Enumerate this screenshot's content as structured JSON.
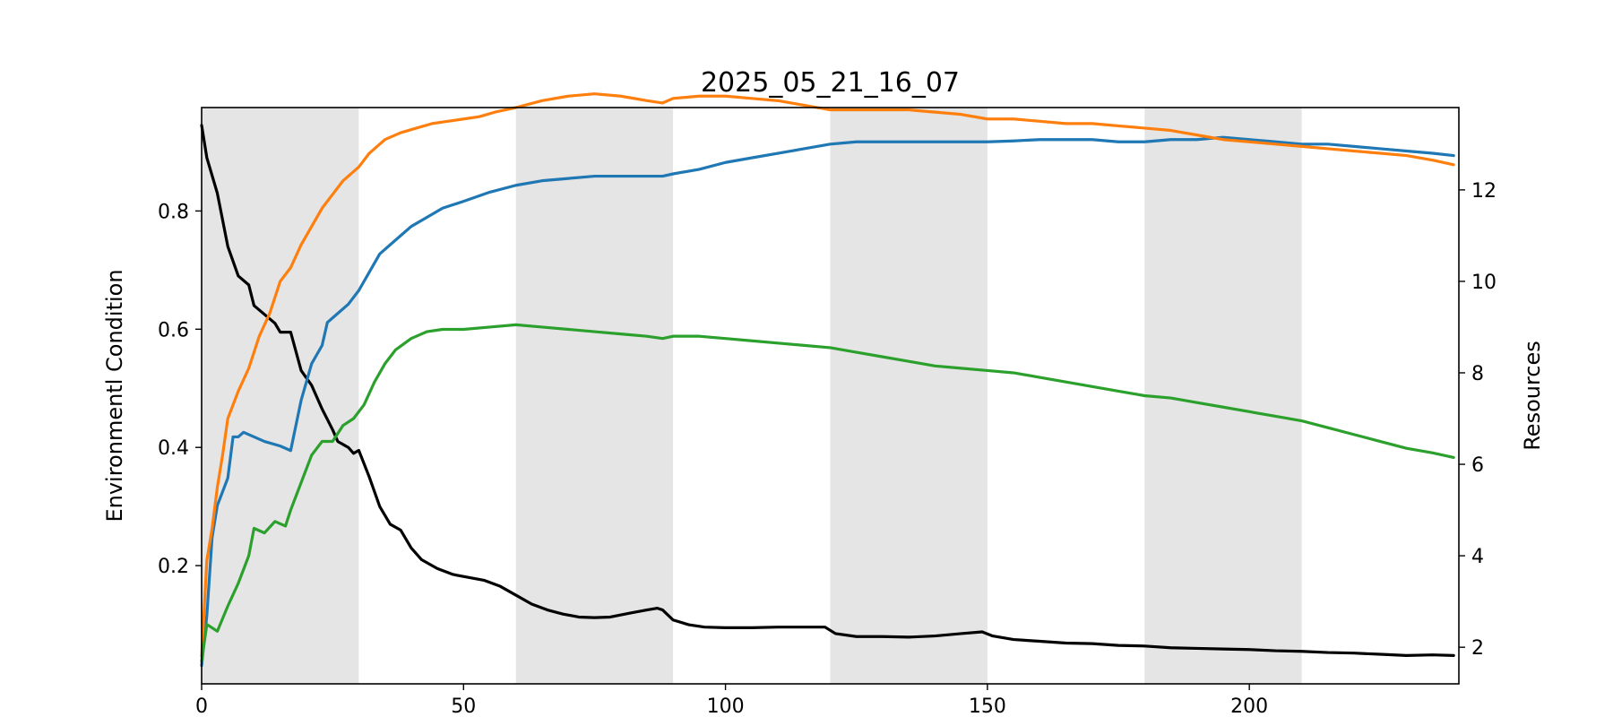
{
  "chart_data": {
    "type": "line",
    "title": "2025_05_21_16_07",
    "xlabel": "",
    "ylabel": "Environmentl Condition",
    "ylabel_right": "Resources",
    "xlim": [
      0,
      240
    ],
    "ylim": [
      0.0,
      0.975
    ],
    "ylim_right": [
      1.2,
      13.8
    ],
    "x_ticks": [
      0,
      50,
      100,
      150,
      200
    ],
    "y_ticks": [
      0.2,
      0.4,
      0.6,
      0.8
    ],
    "y_ticks_right": [
      2,
      4,
      6,
      8,
      10,
      12
    ],
    "grid": false,
    "legend": "none",
    "shaded_x_ranges": [
      [
        0,
        30
      ],
      [
        60,
        90
      ],
      [
        120,
        150
      ],
      [
        180,
        210
      ]
    ],
    "shade_color": "#e5e5e5",
    "series": [
      {
        "axis": "left",
        "color": "#000000",
        "points": [
          [
            0,
            0.945
          ],
          [
            1,
            0.89
          ],
          [
            3,
            0.83
          ],
          [
            5,
            0.74
          ],
          [
            7,
            0.69
          ],
          [
            9,
            0.675
          ],
          [
            10,
            0.64
          ],
          [
            12,
            0.625
          ],
          [
            14,
            0.61
          ],
          [
            15,
            0.595
          ],
          [
            17,
            0.595
          ],
          [
            19,
            0.53
          ],
          [
            21,
            0.505
          ],
          [
            23,
            0.465
          ],
          [
            25,
            0.43
          ],
          [
            26,
            0.41
          ],
          [
            28,
            0.4
          ],
          [
            29,
            0.39
          ],
          [
            30,
            0.395
          ],
          [
            32,
            0.35
          ],
          [
            34,
            0.3
          ],
          [
            36,
            0.27
          ],
          [
            38,
            0.26
          ],
          [
            40,
            0.23
          ],
          [
            42,
            0.21
          ],
          [
            45,
            0.195
          ],
          [
            48,
            0.185
          ],
          [
            51,
            0.18
          ],
          [
            54,
            0.175
          ],
          [
            57,
            0.165
          ],
          [
            60,
            0.15
          ],
          [
            63,
            0.135
          ],
          [
            66,
            0.125
          ],
          [
            69,
            0.118
          ],
          [
            72,
            0.113
          ],
          [
            75,
            0.112
          ],
          [
            78,
            0.113
          ],
          [
            82,
            0.12
          ],
          [
            85,
            0.125
          ],
          [
            87,
            0.128
          ],
          [
            88,
            0.125
          ],
          [
            90,
            0.108
          ],
          [
            93,
            0.1
          ],
          [
            96,
            0.096
          ],
          [
            100,
            0.095
          ],
          [
            105,
            0.095
          ],
          [
            110,
            0.096
          ],
          [
            115,
            0.096
          ],
          [
            119,
            0.096
          ],
          [
            121,
            0.085
          ],
          [
            125,
            0.08
          ],
          [
            130,
            0.08
          ],
          [
            135,
            0.079
          ],
          [
            140,
            0.081
          ],
          [
            145,
            0.085
          ],
          [
            149,
            0.088
          ],
          [
            151,
            0.081
          ],
          [
            155,
            0.075
          ],
          [
            160,
            0.072
          ],
          [
            165,
            0.069
          ],
          [
            170,
            0.068
          ],
          [
            175,
            0.065
          ],
          [
            180,
            0.064
          ],
          [
            185,
            0.061
          ],
          [
            190,
            0.06
          ],
          [
            195,
            0.059
          ],
          [
            200,
            0.058
          ],
          [
            205,
            0.056
          ],
          [
            210,
            0.055
          ],
          [
            215,
            0.053
          ],
          [
            220,
            0.052
          ],
          [
            225,
            0.05
          ],
          [
            230,
            0.048
          ],
          [
            235,
            0.049
          ],
          [
            239,
            0.048
          ]
        ]
      },
      {
        "axis": "right",
        "color": "#1f77b4",
        "points": [
          [
            0,
            1.6
          ],
          [
            1,
            2.7
          ],
          [
            2,
            4.4
          ],
          [
            3,
            5.1
          ],
          [
            4,
            5.4
          ],
          [
            5,
            5.7
          ],
          [
            6,
            6.6
          ],
          [
            7,
            6.6
          ],
          [
            8,
            6.7
          ],
          [
            10,
            6.6
          ],
          [
            12,
            6.5
          ],
          [
            15,
            6.4
          ],
          [
            17,
            6.3
          ],
          [
            19,
            7.4
          ],
          [
            21,
            8.2
          ],
          [
            23,
            8.6
          ],
          [
            24,
            9.1
          ],
          [
            26,
            9.3
          ],
          [
            28,
            9.5
          ],
          [
            30,
            9.8
          ],
          [
            32,
            10.2
          ],
          [
            34,
            10.6
          ],
          [
            36,
            10.8
          ],
          [
            38,
            11.0
          ],
          [
            40,
            11.2
          ],
          [
            43,
            11.4
          ],
          [
            46,
            11.6
          ],
          [
            50,
            11.75
          ],
          [
            55,
            11.95
          ],
          [
            60,
            12.1
          ],
          [
            65,
            12.2
          ],
          [
            70,
            12.25
          ],
          [
            75,
            12.3
          ],
          [
            80,
            12.3
          ],
          [
            85,
            12.3
          ],
          [
            88,
            12.3
          ],
          [
            90,
            12.35
          ],
          [
            95,
            12.45
          ],
          [
            100,
            12.6
          ],
          [
            105,
            12.7
          ],
          [
            110,
            12.8
          ],
          [
            115,
            12.9
          ],
          [
            120,
            13.0
          ],
          [
            125,
            13.05
          ],
          [
            130,
            13.05
          ],
          [
            135,
            13.05
          ],
          [
            140,
            13.05
          ],
          [
            145,
            13.05
          ],
          [
            150,
            13.05
          ],
          [
            155,
            13.07
          ],
          [
            160,
            13.1
          ],
          [
            165,
            13.1
          ],
          [
            170,
            13.1
          ],
          [
            175,
            13.05
          ],
          [
            180,
            13.05
          ],
          [
            185,
            13.1
          ],
          [
            190,
            13.1
          ],
          [
            195,
            13.15
          ],
          [
            200,
            13.1
          ],
          [
            205,
            13.05
          ],
          [
            210,
            13.0
          ],
          [
            215,
            13.0
          ],
          [
            220,
            12.95
          ],
          [
            225,
            12.9
          ],
          [
            230,
            12.85
          ],
          [
            235,
            12.8
          ],
          [
            239,
            12.75
          ]
        ]
      },
      {
        "axis": "right",
        "color": "#ff7f0e",
        "points": [
          [
            0,
            1.8
          ],
          [
            1,
            3.9
          ],
          [
            2,
            4.6
          ],
          [
            3,
            5.5
          ],
          [
            4,
            6.2
          ],
          [
            5,
            7.0
          ],
          [
            7,
            7.6
          ],
          [
            9,
            8.1
          ],
          [
            11,
            8.8
          ],
          [
            13,
            9.3
          ],
          [
            15,
            10.0
          ],
          [
            17,
            10.3
          ],
          [
            19,
            10.8
          ],
          [
            21,
            11.2
          ],
          [
            23,
            11.6
          ],
          [
            25,
            11.9
          ],
          [
            27,
            12.2
          ],
          [
            30,
            12.5
          ],
          [
            32,
            12.8
          ],
          [
            35,
            13.1
          ],
          [
            38,
            13.25
          ],
          [
            41,
            13.35
          ],
          [
            44,
            13.45
          ],
          [
            47,
            13.5
          ],
          [
            50,
            13.55
          ],
          [
            53,
            13.6
          ],
          [
            56,
            13.7
          ],
          [
            60,
            13.8
          ],
          [
            65,
            13.95
          ],
          [
            70,
            14.05
          ],
          [
            75,
            14.1
          ],
          [
            80,
            14.05
          ],
          [
            85,
            13.95
          ],
          [
            88,
            13.9
          ],
          [
            90,
            14.0
          ],
          [
            95,
            14.05
          ],
          [
            100,
            14.05
          ],
          [
            105,
            14.0
          ],
          [
            110,
            13.95
          ],
          [
            115,
            13.85
          ],
          [
            120,
            13.75
          ],
          [
            125,
            13.75
          ],
          [
            130,
            13.75
          ],
          [
            135,
            13.75
          ],
          [
            140,
            13.7
          ],
          [
            145,
            13.65
          ],
          [
            150,
            13.55
          ],
          [
            155,
            13.55
          ],
          [
            160,
            13.5
          ],
          [
            165,
            13.45
          ],
          [
            170,
            13.45
          ],
          [
            175,
            13.4
          ],
          [
            180,
            13.35
          ],
          [
            185,
            13.3
          ],
          [
            190,
            13.2
          ],
          [
            195,
            13.1
          ],
          [
            200,
            13.05
          ],
          [
            205,
            13.0
          ],
          [
            210,
            12.95
          ],
          [
            215,
            12.9
          ],
          [
            220,
            12.85
          ],
          [
            225,
            12.8
          ],
          [
            230,
            12.75
          ],
          [
            235,
            12.65
          ],
          [
            239,
            12.55
          ]
        ]
      },
      {
        "axis": "right",
        "color": "#2ca02c",
        "points": [
          [
            0,
            1.7
          ],
          [
            1,
            2.5
          ],
          [
            3,
            2.35
          ],
          [
            5,
            2.9
          ],
          [
            7,
            3.4
          ],
          [
            9,
            4.0
          ],
          [
            10,
            4.6
          ],
          [
            12,
            4.5
          ],
          [
            14,
            4.75
          ],
          [
            16,
            4.65
          ],
          [
            17,
            5.0
          ],
          [
            19,
            5.6
          ],
          [
            21,
            6.2
          ],
          [
            23,
            6.5
          ],
          [
            25,
            6.5
          ],
          [
            27,
            6.85
          ],
          [
            29,
            7.0
          ],
          [
            31,
            7.3
          ],
          [
            33,
            7.8
          ],
          [
            35,
            8.2
          ],
          [
            37,
            8.5
          ],
          [
            40,
            8.75
          ],
          [
            43,
            8.9
          ],
          [
            46,
            8.95
          ],
          [
            50,
            8.95
          ],
          [
            55,
            9.0
          ],
          [
            60,
            9.05
          ],
          [
            65,
            9.0
          ],
          [
            70,
            8.95
          ],
          [
            75,
            8.9
          ],
          [
            80,
            8.85
          ],
          [
            85,
            8.8
          ],
          [
            88,
            8.75
          ],
          [
            90,
            8.8
          ],
          [
            95,
            8.8
          ],
          [
            100,
            8.75
          ],
          [
            105,
            8.7
          ],
          [
            110,
            8.65
          ],
          [
            115,
            8.6
          ],
          [
            120,
            8.55
          ],
          [
            125,
            8.45
          ],
          [
            130,
            8.35
          ],
          [
            135,
            8.25
          ],
          [
            140,
            8.15
          ],
          [
            145,
            8.1
          ],
          [
            150,
            8.05
          ],
          [
            155,
            8.0
          ],
          [
            160,
            7.9
          ],
          [
            165,
            7.8
          ],
          [
            170,
            7.7
          ],
          [
            175,
            7.6
          ],
          [
            180,
            7.5
          ],
          [
            185,
            7.45
          ],
          [
            190,
            7.35
          ],
          [
            195,
            7.25
          ],
          [
            200,
            7.15
          ],
          [
            205,
            7.05
          ],
          [
            210,
            6.95
          ],
          [
            215,
            6.8
          ],
          [
            220,
            6.65
          ],
          [
            225,
            6.5
          ],
          [
            230,
            6.35
          ],
          [
            235,
            6.25
          ],
          [
            239,
            6.15
          ]
        ]
      }
    ]
  }
}
